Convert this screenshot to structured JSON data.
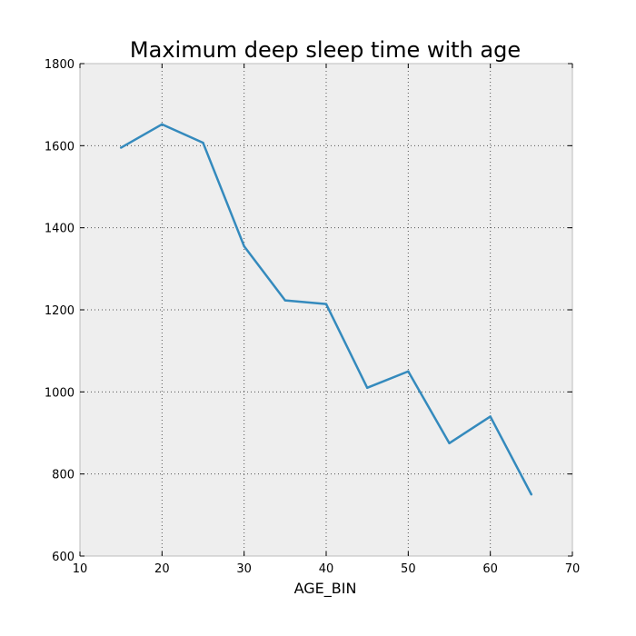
{
  "chart_data": {
    "type": "line",
    "title": "Maximum deep sleep time with age",
    "xlabel": "AGE_BIN",
    "ylabel": "",
    "xlim": [
      10,
      70
    ],
    "ylim": [
      600,
      1800
    ],
    "xticks": [
      10,
      20,
      30,
      40,
      50,
      60,
      70
    ],
    "yticks": [
      600,
      800,
      1000,
      1200,
      1400,
      1600,
      1800
    ],
    "grid": true,
    "series": [
      {
        "name": "",
        "color": "#348abd",
        "x": [
          15,
          20,
          25,
          30,
          35,
          40,
          45,
          50,
          55,
          60,
          65
        ],
        "y": [
          1595,
          1652,
          1607,
          1355,
          1223,
          1214,
          1010,
          1050,
          875,
          940,
          750
        ]
      }
    ]
  },
  "colors": {
    "plot_background": "#eeeeee",
    "grid": "#555555"
  }
}
